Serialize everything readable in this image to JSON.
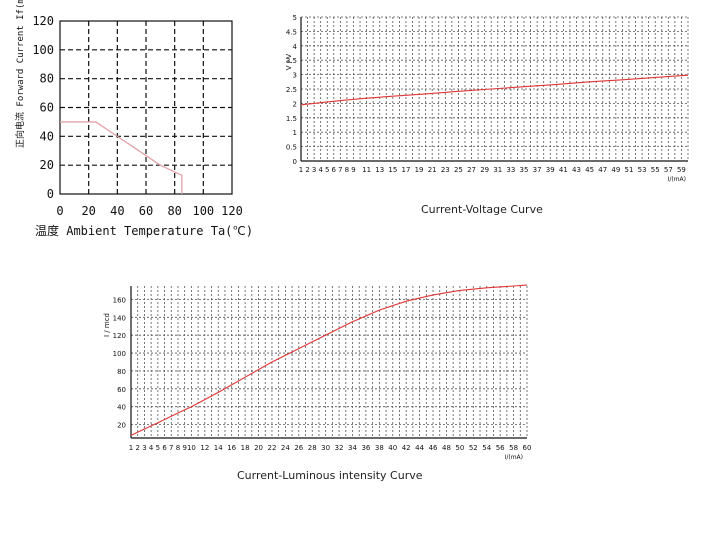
{
  "chart_data": [
    {
      "type": "line",
      "title": "",
      "ylabel": "正向电流 Forward Current If(mA)",
      "xlabel": "温度 Ambient Temperature Ta(℃)",
      "xlim": [
        0,
        120
      ],
      "ylim": [
        0,
        120
      ],
      "x_ticks": [
        "0",
        "20",
        "40",
        "60",
        "80",
        "100",
        "120"
      ],
      "y_ticks": [
        "0",
        "20",
        "40",
        "60",
        "80",
        "100",
        "120"
      ],
      "grid": true,
      "series": [
        {
          "x": [
            0,
            25,
            70,
            85,
            85
          ],
          "y": [
            50,
            50,
            20,
            13,
            0
          ]
        }
      ]
    },
    {
      "type": "line",
      "title": "Current-Voltage Curve",
      "ylabel": "V / V",
      "xlabel": "I/(mA)",
      "xlim": [
        1,
        60
      ],
      "ylim": [
        0,
        5
      ],
      "x_ticks": [
        "1",
        "2",
        "3",
        "4",
        "5",
        "6",
        "7",
        "8",
        "9",
        "11",
        "13",
        "15",
        "17",
        "19",
        "21",
        "23",
        "25",
        "27",
        "29",
        "31",
        "33",
        "35",
        "37",
        "39",
        "41",
        "43",
        "45",
        "47",
        "49",
        "51",
        "53",
        "55",
        "57",
        "59"
      ],
      "y_ticks": [
        "0",
        "0.5",
        "1",
        "1.5",
        "2",
        "2.5",
        "3",
        "3.5",
        "4",
        "4.5",
        "5"
      ],
      "grid": true,
      "series": [
        {
          "x": [
            1,
            3,
            5,
            8,
            11,
            15,
            20,
            25,
            30,
            35,
            40,
            45,
            50,
            55,
            60
          ],
          "y": [
            1.95,
            2.0,
            2.05,
            2.12,
            2.18,
            2.25,
            2.33,
            2.42,
            2.5,
            2.58,
            2.66,
            2.75,
            2.82,
            2.9,
            2.98
          ]
        }
      ]
    },
    {
      "type": "line",
      "title": "Current-Luminous intensity Curve",
      "ylabel": "I / mcd",
      "xlabel": "I/(mA)",
      "xlim": [
        1,
        60
      ],
      "ylim": [
        5,
        175
      ],
      "x_ticks": [
        "1",
        "2",
        "3",
        "4",
        "5",
        "6",
        "7",
        "8",
        "9",
        "10",
        "12",
        "14",
        "16",
        "18",
        "20",
        "22",
        "24",
        "26",
        "28",
        "30",
        "32",
        "34",
        "36",
        "38",
        "40",
        "42",
        "44",
        "46",
        "48",
        "50",
        "52",
        "54",
        "56",
        "58",
        "60"
      ],
      "y_ticks": [
        "20",
        "40",
        "60",
        "80",
        "100",
        "120",
        "140",
        "160"
      ],
      "grid": true,
      "series": [
        {
          "x": [
            1,
            3,
            5,
            8,
            10,
            14,
            18,
            22,
            26,
            30,
            34,
            38,
            42,
            46,
            50,
            54,
            58,
            60
          ],
          "y": [
            8,
            15,
            22,
            33,
            40,
            56,
            73,
            90,
            105,
            120,
            135,
            148,
            158,
            165,
            170,
            173,
            175,
            176
          ]
        }
      ]
    }
  ]
}
